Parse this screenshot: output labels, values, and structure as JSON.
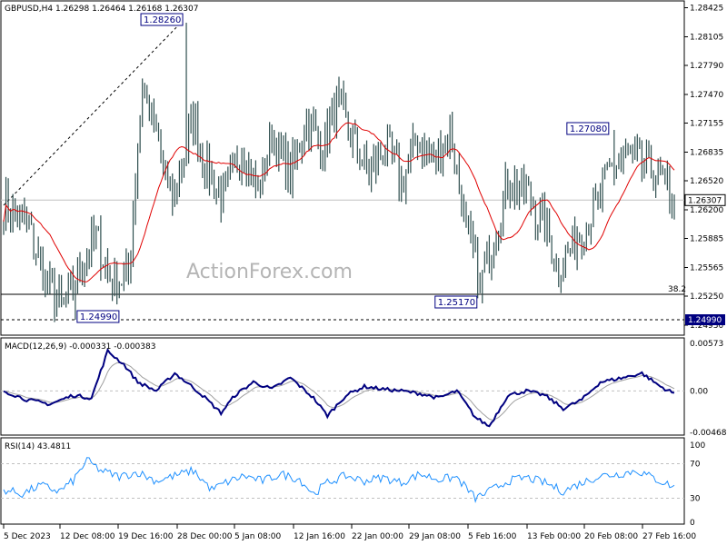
{
  "chart_data": [
    {
      "type": "candlestick",
      "header": "GBPUSD,H4  1.26298 1.26464 1.26168 1.26307",
      "last_price": "1.26307",
      "ylim": [
        1.2482,
        1.285
      ],
      "y_ticks": [
        "1.28425",
        "1.28105",
        "1.27790",
        "1.27470",
        "1.27155",
        "1.26835",
        "1.26520",
        "1.26200",
        "1.25885",
        "1.25565",
        "1.25250",
        "1.24930"
      ],
      "annotations": [
        {
          "label": "1.28260",
          "value": 1.2826,
          "x_index": 79
        },
        {
          "label": "1.27080",
          "value": 1.2708,
          "x_index": 264
        },
        {
          "label": "1.25170",
          "value": 1.2517,
          "x_index": 207
        },
        {
          "label": "1.24990",
          "value": 1.2499,
          "x_index": 31
        }
      ],
      "levels": [
        {
          "label": "38.2",
          "value": 1.2527
        },
        {
          "label": "1.24990",
          "value": 1.2499
        },
        {
          "label": "",
          "value": 1.26307
        }
      ],
      "watermark": "ActionForex.com",
      "anchors": [
        [
          0,
          1.2628
        ],
        [
          10,
          1.2605
        ],
        [
          18,
          1.2545
        ],
        [
          26,
          1.251
        ],
        [
          33,
          1.256
        ],
        [
          40,
          1.259
        ],
        [
          47,
          1.254
        ],
        [
          54,
          1.2548
        ],
        [
          60,
          1.276
        ],
        [
          66,
          1.27
        ],
        [
          73,
          1.2628
        ],
        [
          82,
          1.272
        ],
        [
          88,
          1.2665
        ],
        [
          95,
          1.263
        ],
        [
          103,
          1.269
        ],
        [
          110,
          1.264
        ],
        [
          116,
          1.27
        ],
        [
          124,
          1.266
        ],
        [
          131,
          1.272
        ],
        [
          138,
          1.269
        ],
        [
          144,
          1.274
        ],
        [
          150,
          1.27
        ],
        [
          158,
          1.266
        ],
        [
          166,
          1.269
        ],
        [
          172,
          1.265
        ],
        [
          179,
          1.27
        ],
        [
          186,
          1.267
        ],
        [
          193,
          1.271
        ],
        [
          200,
          1.26
        ],
        [
          206,
          1.254
        ],
        [
          212,
          1.259
        ],
        [
          218,
          1.265
        ],
        [
          226,
          1.264
        ],
        [
          234,
          1.26
        ],
        [
          240,
          1.2555
        ],
        [
          248,
          1.259
        ],
        [
          256,
          1.262
        ],
        [
          262,
          1.2665
        ],
        [
          270,
          1.268
        ],
        [
          278,
          1.2665
        ],
        [
          285,
          1.265
        ],
        [
          290,
          1.2631
        ]
      ]
    },
    {
      "type": "line",
      "title": "MACD(12,26,9) -0.000331 -0.000383",
      "y_ticks": [
        "0.00573",
        "0.00",
        "-0.004685"
      ],
      "ylim": [
        -0.005,
        0.006
      ],
      "series": [
        {
          "name": "MACD",
          "anchors": [
            [
              0,
              0.0
            ],
            [
              10,
              -0.001
            ],
            [
              20,
              -0.0015
            ],
            [
              30,
              -0.0005
            ],
            [
              38,
              -0.0008
            ],
            [
              45,
              0.0045
            ],
            [
              52,
              0.003
            ],
            [
              58,
              0.001
            ],
            [
              66,
              0.0
            ],
            [
              74,
              0.002
            ],
            [
              80,
              0.0008
            ],
            [
              86,
              -0.0005
            ],
            [
              94,
              -0.0025
            ],
            [
              100,
              -0.0005
            ],
            [
              108,
              0.001
            ],
            [
              116,
              0.0002
            ],
            [
              124,
              0.0015
            ],
            [
              134,
              -0.0008
            ],
            [
              140,
              -0.0028
            ],
            [
              148,
              -0.0005
            ],
            [
              156,
              0.0005
            ],
            [
              164,
              0.0002
            ],
            [
              172,
              0.0
            ],
            [
              180,
              -0.0003
            ],
            [
              188,
              -0.0008
            ],
            [
              196,
              0.0
            ],
            [
              204,
              -0.003
            ],
            [
              210,
              -0.004
            ],
            [
              218,
              -0.0005
            ],
            [
              226,
              0.0
            ],
            [
              234,
              -0.0005
            ],
            [
              242,
              -0.002
            ],
            [
              250,
              -0.001
            ],
            [
              258,
              0.001
            ],
            [
              268,
              0.0015
            ],
            [
              276,
              0.002
            ],
            [
              284,
              0.0005
            ],
            [
              290,
              -0.0003
            ]
          ]
        }
      ]
    },
    {
      "type": "line",
      "title": "RSI(14) 43.4811",
      "y_ticks": [
        "100",
        "70",
        "30",
        "0"
      ],
      "ylim": [
        0,
        100
      ],
      "series": [
        {
          "name": "RSI",
          "anchors": [
            [
              0,
              40
            ],
            [
              8,
              35
            ],
            [
              16,
              45
            ],
            [
              24,
              38
            ],
            [
              30,
              50
            ],
            [
              36,
              74
            ],
            [
              42,
              62
            ],
            [
              50,
              55
            ],
            [
              58,
              60
            ],
            [
              66,
              50
            ],
            [
              74,
              56
            ],
            [
              82,
              62
            ],
            [
              90,
              40
            ],
            [
              96,
              48
            ],
            [
              104,
              56
            ],
            [
              112,
              50
            ],
            [
              120,
              58
            ],
            [
              128,
              52
            ],
            [
              134,
              35
            ],
            [
              140,
              48
            ],
            [
              148,
              56
            ],
            [
              156,
              50
            ],
            [
              164,
              54
            ],
            [
              172,
              48
            ],
            [
              180,
              58
            ],
            [
              188,
              52
            ],
            [
              196,
              54
            ],
            [
              204,
              30
            ],
            [
              210,
              38
            ],
            [
              218,
              50
            ],
            [
              226,
              54
            ],
            [
              234,
              48
            ],
            [
              242,
              38
            ],
            [
              250,
              48
            ],
            [
              258,
              56
            ],
            [
              266,
              58
            ],
            [
              274,
              62
            ],
            [
              282,
              52
            ],
            [
              290,
              43
            ]
          ]
        }
      ]
    }
  ],
  "x_labels": [
    "5 Dec 2023",
    "12 Dec 08:00",
    "19 Dec 16:00",
    "28 Dec 00:00",
    "5 Jan 08:00",
    "12 Jan 16:00",
    "22 Jan 00:00",
    "29 Jan 08:00",
    "5 Feb 16:00",
    "13 Feb 00:00",
    "20 Feb 08:00",
    "27 Feb 16:00"
  ],
  "colors": {
    "candle": "#2f4f4f",
    "ma": "#e00000",
    "macd": "#000080",
    "signal": "#a0a0a0",
    "rsi": "#1e90ff",
    "grid": "#c0c0c0"
  }
}
